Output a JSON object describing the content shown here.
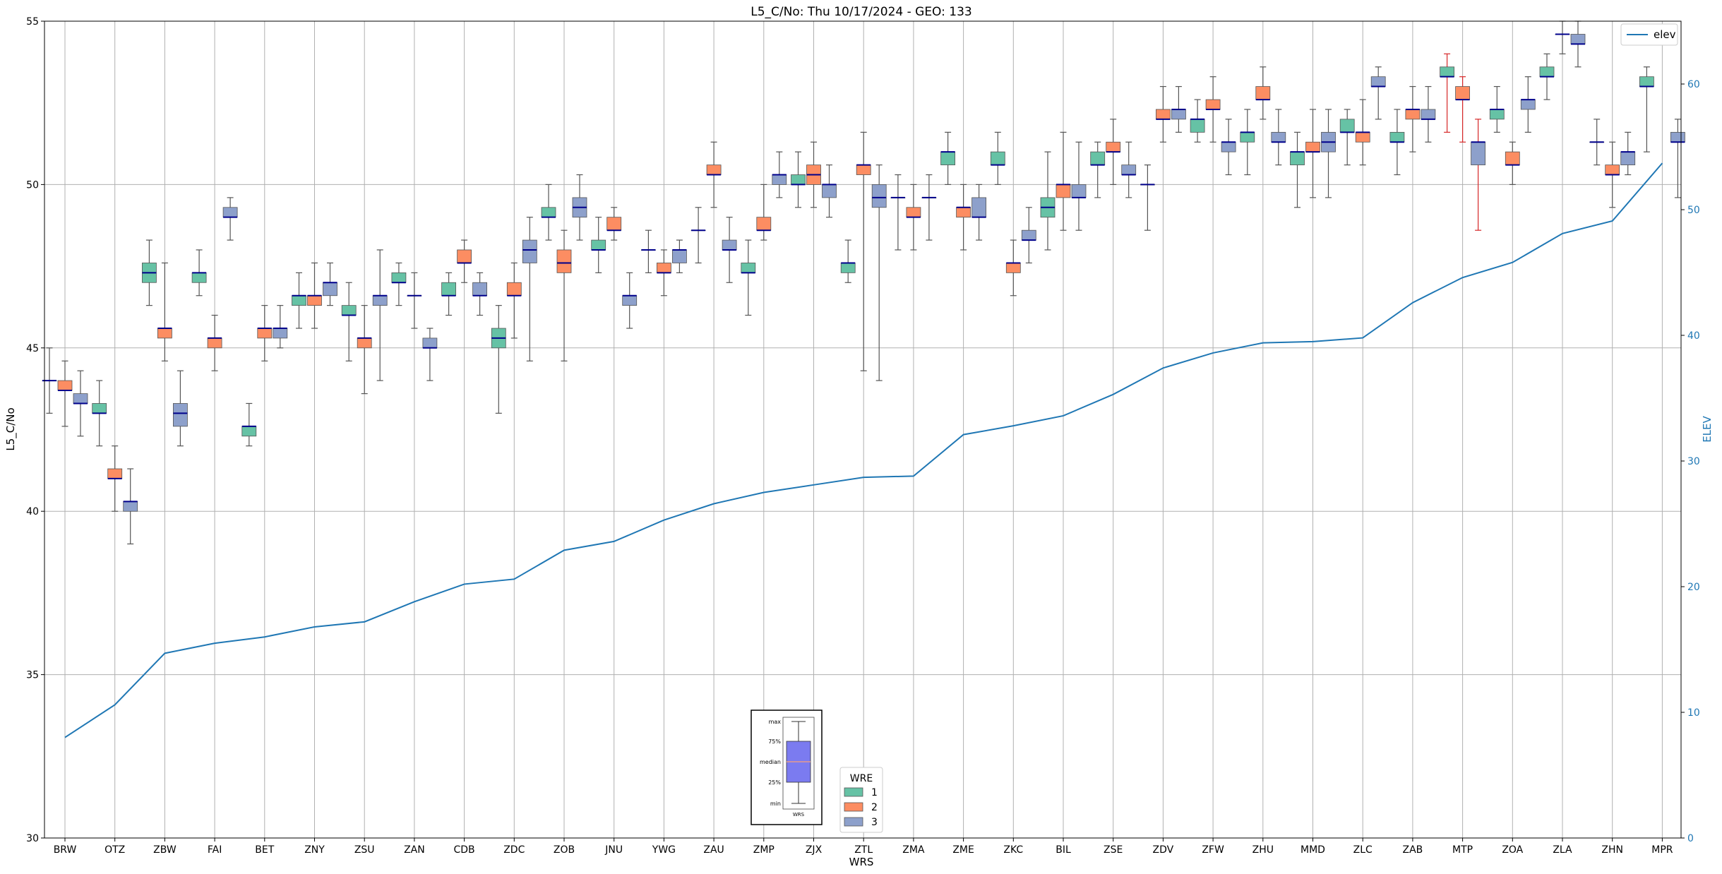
{
  "chart_data": {
    "type": "box",
    "title": "L5_C/No: Thu 10/17/2024 - GEO: 133",
    "xlabel": "WRS",
    "ylabel": "L5_C/No",
    "y2label": "ELEV",
    "ylim": [
      30,
      55
    ],
    "y2lim": [
      0,
      65
    ],
    "yticks": [
      30,
      35,
      40,
      45,
      50,
      55
    ],
    "y2ticks": [
      0,
      10,
      20,
      30,
      40,
      50,
      60
    ],
    "grid": true,
    "categories": [
      "BRW",
      "OTZ",
      "ZBW",
      "FAI",
      "BET",
      "ZNY",
      "ZSU",
      "ZAN",
      "CDB",
      "ZDC",
      "ZOB",
      "JNU",
      "YWG",
      "ZAU",
      "ZMP",
      "ZJX",
      "ZTL",
      "ZMA",
      "ZME",
      "ZKC",
      "BIL",
      "ZSE",
      "ZDV",
      "ZFW",
      "ZHU",
      "MMD",
      "ZLC",
      "ZAB",
      "MTP",
      "ZOA",
      "ZLA",
      "ZHN",
      "MPR"
    ],
    "wre_colors": {
      "1": "#66c2a5",
      "2": "#fc8d62",
      "3": "#8da0cb"
    },
    "median_color": "#00008b",
    "whisker_color": "#555555",
    "alert_whisker_color": "#d62728",
    "boxes": [
      {
        "cat": "BRW",
        "wre": "1",
        "min": 43.0,
        "q1": 44.0,
        "med": 44.0,
        "q3": 44.0,
        "max": 45.0
      },
      {
        "cat": "BRW",
        "wre": "2",
        "min": 42.6,
        "q1": 43.7,
        "med": 43.7,
        "q3": 44.0,
        "max": 44.6
      },
      {
        "cat": "BRW",
        "wre": "3",
        "min": 42.3,
        "q1": 43.3,
        "med": 43.3,
        "q3": 43.6,
        "max": 44.3
      },
      {
        "cat": "OTZ",
        "wre": "1",
        "min": 42.0,
        "q1": 43.0,
        "med": 43.0,
        "q3": 43.3,
        "max": 44.0
      },
      {
        "cat": "OTZ",
        "wre": "2",
        "min": 40.0,
        "q1": 41.0,
        "med": 41.0,
        "q3": 41.3,
        "max": 42.0
      },
      {
        "cat": "OTZ",
        "wre": "3",
        "min": 39.0,
        "q1": 40.0,
        "med": 40.3,
        "q3": 40.3,
        "max": 41.3
      },
      {
        "cat": "ZBW",
        "wre": "1",
        "min": 46.3,
        "q1": 47.0,
        "med": 47.3,
        "q3": 47.6,
        "max": 48.3
      },
      {
        "cat": "ZBW",
        "wre": "2",
        "min": 44.6,
        "q1": 45.3,
        "med": 45.6,
        "q3": 45.6,
        "max": 47.6
      },
      {
        "cat": "ZBW",
        "wre": "3",
        "min": 42.0,
        "q1": 42.6,
        "med": 43.0,
        "q3": 43.3,
        "max": 44.3
      },
      {
        "cat": "FAI",
        "wre": "1",
        "min": 46.6,
        "q1": 47.0,
        "med": 47.3,
        "q3": 47.3,
        "max": 48.0
      },
      {
        "cat": "FAI",
        "wre": "2",
        "min": 44.3,
        "q1": 45.0,
        "med": 45.3,
        "q3": 45.3,
        "max": 46.0
      },
      {
        "cat": "FAI",
        "wre": "3",
        "min": 48.3,
        "q1": 49.0,
        "med": 49.0,
        "q3": 49.3,
        "max": 49.6
      },
      {
        "cat": "BET",
        "wre": "1",
        "min": 42.0,
        "q1": 42.3,
        "med": 42.6,
        "q3": 42.6,
        "max": 43.3
      },
      {
        "cat": "BET",
        "wre": "2",
        "min": 44.6,
        "q1": 45.3,
        "med": 45.6,
        "q3": 45.6,
        "max": 46.3
      },
      {
        "cat": "BET",
        "wre": "3",
        "min": 45.0,
        "q1": 45.3,
        "med": 45.6,
        "q3": 45.6,
        "max": 46.3
      },
      {
        "cat": "ZNY",
        "wre": "1",
        "min": 45.6,
        "q1": 46.3,
        "med": 46.6,
        "q3": 46.6,
        "max": 47.3
      },
      {
        "cat": "ZNY",
        "wre": "2",
        "min": 45.6,
        "q1": 46.3,
        "med": 46.6,
        "q3": 46.6,
        "max": 47.6
      },
      {
        "cat": "ZNY",
        "wre": "3",
        "min": 46.3,
        "q1": 46.6,
        "med": 47.0,
        "q3": 47.0,
        "max": 47.6
      },
      {
        "cat": "ZSU",
        "wre": "1",
        "min": 44.6,
        "q1": 46.0,
        "med": 46.0,
        "q3": 46.3,
        "max": 47.0
      },
      {
        "cat": "ZSU",
        "wre": "2",
        "min": 43.6,
        "q1": 45.0,
        "med": 45.3,
        "q3": 45.3,
        "max": 46.3
      },
      {
        "cat": "ZSU",
        "wre": "3",
        "min": 44.0,
        "q1": 46.3,
        "med": 46.6,
        "q3": 46.6,
        "max": 48.0
      },
      {
        "cat": "ZAN",
        "wre": "1",
        "min": 46.3,
        "q1": 47.0,
        "med": 47.0,
        "q3": 47.3,
        "max": 47.6
      },
      {
        "cat": "ZAN",
        "wre": "2",
        "min": 45.6,
        "q1": 46.6,
        "med": 46.6,
        "q3": 46.6,
        "max": 47.3
      },
      {
        "cat": "ZAN",
        "wre": "3",
        "min": 44.0,
        "q1": 45.0,
        "med": 45.0,
        "q3": 45.3,
        "max": 45.6
      },
      {
        "cat": "CDB",
        "wre": "1",
        "min": 46.0,
        "q1": 46.6,
        "med": 46.6,
        "q3": 47.0,
        "max": 47.3
      },
      {
        "cat": "CDB",
        "wre": "2",
        "min": 47.0,
        "q1": 47.6,
        "med": 47.6,
        "q3": 48.0,
        "max": 48.3
      },
      {
        "cat": "CDB",
        "wre": "3",
        "min": 46.0,
        "q1": 46.6,
        "med": 46.6,
        "q3": 47.0,
        "max": 47.3
      },
      {
        "cat": "ZDC",
        "wre": "1",
        "min": 43.0,
        "q1": 45.0,
        "med": 45.3,
        "q3": 45.6,
        "max": 46.3
      },
      {
        "cat": "ZDC",
        "wre": "2",
        "min": 45.3,
        "q1": 46.6,
        "med": 46.6,
        "q3": 47.0,
        "max": 47.6
      },
      {
        "cat": "ZDC",
        "wre": "3",
        "min": 44.6,
        "q1": 47.6,
        "med": 48.0,
        "q3": 48.3,
        "max": 49.0
      },
      {
        "cat": "ZOB",
        "wre": "1",
        "min": 48.3,
        "q1": 49.0,
        "med": 49.0,
        "q3": 49.3,
        "max": 50.0
      },
      {
        "cat": "ZOB",
        "wre": "2",
        "min": 44.6,
        "q1": 47.3,
        "med": 47.6,
        "q3": 48.0,
        "max": 48.6
      },
      {
        "cat": "ZOB",
        "wre": "3",
        "min": 48.3,
        "q1": 49.0,
        "med": 49.3,
        "q3": 49.6,
        "max": 50.3
      },
      {
        "cat": "JNU",
        "wre": "1",
        "min": 47.3,
        "q1": 48.0,
        "med": 48.0,
        "q3": 48.3,
        "max": 49.0
      },
      {
        "cat": "JNU",
        "wre": "2",
        "min": 48.3,
        "q1": 48.6,
        "med": 48.6,
        "q3": 49.0,
        "max": 49.3
      },
      {
        "cat": "JNU",
        "wre": "3",
        "min": 45.6,
        "q1": 46.3,
        "med": 46.6,
        "q3": 46.6,
        "max": 47.3
      },
      {
        "cat": "YWG",
        "wre": "1",
        "min": 47.3,
        "q1": 48.0,
        "med": 48.0,
        "q3": 48.0,
        "max": 48.6
      },
      {
        "cat": "YWG",
        "wre": "2",
        "min": 46.6,
        "q1": 47.3,
        "med": 47.3,
        "q3": 47.6,
        "max": 48.0
      },
      {
        "cat": "YWG",
        "wre": "3",
        "min": 47.3,
        "q1": 47.6,
        "med": 48.0,
        "q3": 48.0,
        "max": 48.3
      },
      {
        "cat": "ZAU",
        "wre": "1",
        "min": 47.6,
        "q1": 48.6,
        "med": 48.6,
        "q3": 48.6,
        "max": 49.3
      },
      {
        "cat": "ZAU",
        "wre": "2",
        "min": 49.3,
        "q1": 50.3,
        "med": 50.3,
        "q3": 50.6,
        "max": 51.3
      },
      {
        "cat": "ZAU",
        "wre": "3",
        "min": 47.0,
        "q1": 48.0,
        "med": 48.0,
        "q3": 48.3,
        "max": 49.0
      },
      {
        "cat": "ZMP",
        "wre": "1",
        "min": 46.0,
        "q1": 47.3,
        "med": 47.3,
        "q3": 47.6,
        "max": 48.3
      },
      {
        "cat": "ZMP",
        "wre": "2",
        "min": 48.3,
        "q1": 48.6,
        "med": 48.6,
        "q3": 49.0,
        "max": 50.0
      },
      {
        "cat": "ZMP",
        "wre": "3",
        "min": 49.6,
        "q1": 50.0,
        "med": 50.3,
        "q3": 50.3,
        "max": 51.0
      },
      {
        "cat": "ZJX",
        "wre": "1",
        "min": 49.3,
        "q1": 50.0,
        "med": 50.0,
        "q3": 50.3,
        "max": 51.0
      },
      {
        "cat": "ZJX",
        "wre": "2",
        "min": 49.3,
        "q1": 50.0,
        "med": 50.3,
        "q3": 50.6,
        "max": 51.3
      },
      {
        "cat": "ZJX",
        "wre": "3",
        "min": 49.0,
        "q1": 49.6,
        "med": 50.0,
        "q3": 50.0,
        "max": 50.6
      },
      {
        "cat": "ZTL",
        "wre": "1",
        "min": 47.0,
        "q1": 47.3,
        "med": 47.6,
        "q3": 47.6,
        "max": 48.3
      },
      {
        "cat": "ZTL",
        "wre": "2",
        "min": 44.3,
        "q1": 50.3,
        "med": 50.6,
        "q3": 50.6,
        "max": 51.6
      },
      {
        "cat": "ZTL",
        "wre": "3",
        "min": 44.0,
        "q1": 49.3,
        "med": 49.6,
        "q3": 50.0,
        "max": 50.6
      },
      {
        "cat": "ZMA",
        "wre": "1",
        "min": 48.0,
        "q1": 49.6,
        "med": 49.6,
        "q3": 49.6,
        "max": 50.3
      },
      {
        "cat": "ZMA",
        "wre": "2",
        "min": 48.0,
        "q1": 49.0,
        "med": 49.0,
        "q3": 49.3,
        "max": 50.0
      },
      {
        "cat": "ZMA",
        "wre": "3",
        "min": 48.3,
        "q1": 49.6,
        "med": 49.6,
        "q3": 49.6,
        "max": 50.3
      },
      {
        "cat": "ZME",
        "wre": "1",
        "min": 50.0,
        "q1": 50.6,
        "med": 51.0,
        "q3": 51.0,
        "max": 51.6
      },
      {
        "cat": "ZME",
        "wre": "2",
        "min": 48.0,
        "q1": 49.0,
        "med": 49.3,
        "q3": 49.3,
        "max": 50.0
      },
      {
        "cat": "ZME",
        "wre": "3",
        "min": 48.3,
        "q1": 49.0,
        "med": 49.0,
        "q3": 49.6,
        "max": 50.0
      },
      {
        "cat": "ZKC",
        "wre": "1",
        "min": 50.0,
        "q1": 50.6,
        "med": 50.6,
        "q3": 51.0,
        "max": 51.6
      },
      {
        "cat": "ZKC",
        "wre": "2",
        "min": 46.6,
        "q1": 47.3,
        "med": 47.6,
        "q3": 47.6,
        "max": 48.3
      },
      {
        "cat": "ZKC",
        "wre": "3",
        "min": 47.6,
        "q1": 48.3,
        "med": 48.3,
        "q3": 48.6,
        "max": 49.3
      },
      {
        "cat": "BIL",
        "wre": "1",
        "min": 48.0,
        "q1": 49.0,
        "med": 49.3,
        "q3": 49.6,
        "max": 51.0
      },
      {
        "cat": "BIL",
        "wre": "2",
        "min": 48.6,
        "q1": 49.6,
        "med": 50.0,
        "q3": 50.0,
        "max": 51.6
      },
      {
        "cat": "BIL",
        "wre": "3",
        "min": 48.6,
        "q1": 49.6,
        "med": 49.6,
        "q3": 50.0,
        "max": 51.3
      },
      {
        "cat": "ZSE",
        "wre": "1",
        "min": 49.6,
        "q1": 50.6,
        "med": 50.6,
        "q3": 51.0,
        "max": 51.3
      },
      {
        "cat": "ZSE",
        "wre": "2",
        "min": 50.0,
        "q1": 51.0,
        "med": 51.0,
        "q3": 51.3,
        "max": 52.0
      },
      {
        "cat": "ZSE",
        "wre": "3",
        "min": 49.6,
        "q1": 50.3,
        "med": 50.3,
        "q3": 50.6,
        "max": 51.3
      },
      {
        "cat": "ZDV",
        "wre": "1",
        "min": 48.6,
        "q1": 50.0,
        "med": 50.0,
        "q3": 50.0,
        "max": 50.6
      },
      {
        "cat": "ZDV",
        "wre": "2",
        "min": 51.3,
        "q1": 52.0,
        "med": 52.0,
        "q3": 52.3,
        "max": 53.0
      },
      {
        "cat": "ZDV",
        "wre": "3",
        "min": 51.6,
        "q1": 52.0,
        "med": 52.3,
        "q3": 52.3,
        "max": 53.0
      },
      {
        "cat": "ZFW",
        "wre": "1",
        "min": 51.3,
        "q1": 51.6,
        "med": 52.0,
        "q3": 52.0,
        "max": 52.6
      },
      {
        "cat": "ZFW",
        "wre": "2",
        "min": 51.3,
        "q1": 52.3,
        "med": 52.3,
        "q3": 52.6,
        "max": 53.3
      },
      {
        "cat": "ZFW",
        "wre": "3",
        "min": 50.3,
        "q1": 51.0,
        "med": 51.3,
        "q3": 51.3,
        "max": 52.0
      },
      {
        "cat": "ZHU",
        "wre": "1",
        "min": 50.3,
        "q1": 51.3,
        "med": 51.6,
        "q3": 51.6,
        "max": 52.3
      },
      {
        "cat": "ZHU",
        "wre": "2",
        "min": 52.0,
        "q1": 52.6,
        "med": 52.6,
        "q3": 53.0,
        "max": 53.6
      },
      {
        "cat": "ZHU",
        "wre": "3",
        "min": 50.6,
        "q1": 51.3,
        "med": 51.3,
        "q3": 51.6,
        "max": 52.3
      },
      {
        "cat": "MMD",
        "wre": "1",
        "min": 49.3,
        "q1": 50.6,
        "med": 51.0,
        "q3": 51.0,
        "max": 51.6
      },
      {
        "cat": "MMD",
        "wre": "2",
        "min": 49.6,
        "q1": 51.0,
        "med": 51.0,
        "q3": 51.3,
        "max": 52.3
      },
      {
        "cat": "MMD",
        "wre": "3",
        "min": 49.6,
        "q1": 51.0,
        "med": 51.3,
        "q3": 51.6,
        "max": 52.3
      },
      {
        "cat": "ZLC",
        "wre": "1",
        "min": 50.6,
        "q1": 51.6,
        "med": 51.6,
        "q3": 52.0,
        "max": 52.3
      },
      {
        "cat": "ZLC",
        "wre": "2",
        "min": 50.6,
        "q1": 51.3,
        "med": 51.6,
        "q3": 51.6,
        "max": 52.6
      },
      {
        "cat": "ZLC",
        "wre": "3",
        "min": 52.0,
        "q1": 53.0,
        "med": 53.0,
        "q3": 53.3,
        "max": 53.6
      },
      {
        "cat": "ZAB",
        "wre": "1",
        "min": 50.3,
        "q1": 51.3,
        "med": 51.3,
        "q3": 51.6,
        "max": 52.3
      },
      {
        "cat": "ZAB",
        "wre": "2",
        "min": 51.0,
        "q1": 52.0,
        "med": 52.3,
        "q3": 52.3,
        "max": 53.0
      },
      {
        "cat": "ZAB",
        "wre": "3",
        "min": 51.3,
        "q1": 52.0,
        "med": 52.0,
        "q3": 52.3,
        "max": 53.0
      },
      {
        "cat": "MTP",
        "wre": "1",
        "min": 51.6,
        "q1": 53.3,
        "med": 53.3,
        "q3": 53.6,
        "max": 54.0,
        "alert": true
      },
      {
        "cat": "MTP",
        "wre": "2",
        "min": 51.3,
        "q1": 52.6,
        "med": 52.6,
        "q3": 53.0,
        "max": 53.3,
        "alert": true
      },
      {
        "cat": "MTP",
        "wre": "3",
        "min": 48.6,
        "q1": 50.6,
        "med": 51.3,
        "q3": 51.3,
        "max": 52.0,
        "alert": true
      },
      {
        "cat": "ZOA",
        "wre": "1",
        "min": 51.6,
        "q1": 52.0,
        "med": 52.3,
        "q3": 52.3,
        "max": 53.0
      },
      {
        "cat": "ZOA",
        "wre": "2",
        "min": 50.0,
        "q1": 50.6,
        "med": 50.6,
        "q3": 51.0,
        "max": 51.3
      },
      {
        "cat": "ZOA",
        "wre": "3",
        "min": 51.6,
        "q1": 52.3,
        "med": 52.6,
        "q3": 52.6,
        "max": 53.3
      },
      {
        "cat": "ZLA",
        "wre": "1",
        "min": 52.6,
        "q1": 53.3,
        "med": 53.3,
        "q3": 53.6,
        "max": 54.0
      },
      {
        "cat": "ZLA",
        "wre": "2",
        "min": 54.0,
        "q1": 54.6,
        "med": 54.6,
        "q3": 54.6,
        "max": 55.0
      },
      {
        "cat": "ZLA",
        "wre": "3",
        "min": 53.6,
        "q1": 54.3,
        "med": 54.3,
        "q3": 54.6,
        "max": 55.0
      },
      {
        "cat": "ZHN",
        "wre": "1",
        "min": 50.6,
        "q1": 51.3,
        "med": 51.3,
        "q3": 51.3,
        "max": 52.0
      },
      {
        "cat": "ZHN",
        "wre": "2",
        "min": 49.3,
        "q1": 50.3,
        "med": 50.3,
        "q3": 50.6,
        "max": 51.3
      },
      {
        "cat": "ZHN",
        "wre": "3",
        "min": 50.3,
        "q1": 50.6,
        "med": 51.0,
        "q3": 51.0,
        "max": 51.6
      },
      {
        "cat": "MPR",
        "wre": "1",
        "min": 51.0,
        "q1": 53.0,
        "med": 53.0,
        "q3": 53.3,
        "max": 53.6
      },
      {
        "cat": "MPR",
        "wre": "3",
        "min": 49.6,
        "q1": 51.3,
        "med": 51.3,
        "q3": 51.6,
        "max": 52.0
      }
    ],
    "elev_series": {
      "name": "elev",
      "color": "#1f77b4",
      "values": [
        8.0,
        10.6,
        14.7,
        15.5,
        16.0,
        16.8,
        17.2,
        18.8,
        20.2,
        20.6,
        22.9,
        23.6,
        25.3,
        26.6,
        27.5,
        28.1,
        28.7,
        28.8,
        32.1,
        32.8,
        33.6,
        35.3,
        37.4,
        38.6,
        39.4,
        39.5,
        39.8,
        42.6,
        44.6,
        45.8,
        48.1,
        49.1,
        53.7
      ]
    },
    "legend_main": {
      "position": "upper-right",
      "label": "elev"
    },
    "legend_wre": {
      "title": "WRE",
      "items": [
        {
          "label": "1",
          "wre": "1"
        },
        {
          "label": "2",
          "wre": "2"
        },
        {
          "label": "3",
          "wre": "3"
        }
      ]
    },
    "inset_key": {
      "labels": [
        "max",
        "75%",
        "median",
        "25%",
        "min"
      ],
      "caption": "WRS",
      "box_color": "#7b7bf0",
      "median_color": "#e69a8c"
    }
  }
}
